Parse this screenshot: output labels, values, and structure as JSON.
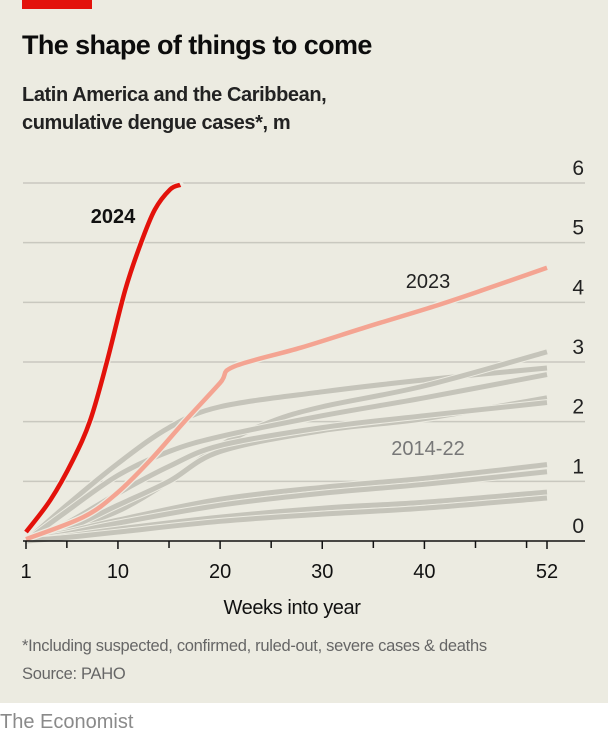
{
  "header": {
    "title": "The shape of things to come",
    "subtitle_line1": "Latin America and the Caribbean,",
    "subtitle_line2": "cumulative dengue cases*, m"
  },
  "footer": {
    "note": "*Including suspected, confirmed, ruled-out, severe cases & deaths",
    "source": "Source: PAHO",
    "brand": "The Economist"
  },
  "colors": {
    "background": "#ecebe1",
    "y2024": "#e3120b",
    "y2023": "#f4a492",
    "history": "#c5c4ba",
    "brand_bar": "#e3120b"
  },
  "chart_data": {
    "type": "line",
    "title": "The shape of things to come",
    "xlabel": "Weeks into year",
    "ylabel": "cumulative dengue cases*, m",
    "xlim": [
      1,
      52
    ],
    "ylim": [
      0,
      6
    ],
    "x_ticks": [
      1,
      10,
      20,
      30,
      40,
      52
    ],
    "x_minor_ticks": [
      5,
      15,
      25,
      35,
      45,
      50
    ],
    "y_ticks": [
      0,
      1,
      2,
      3,
      4,
      5,
      6
    ],
    "grid": true,
    "labels": {
      "y2024": "2024",
      "y2023": "2023",
      "history": "2014-22"
    },
    "series": [
      {
        "name": "2014-22 a",
        "group": "history",
        "x": [
          1,
          5,
          10,
          15,
          20,
          30,
          40,
          52
        ],
        "values": [
          0,
          0.6,
          1.3,
          1.9,
          2.25,
          2.5,
          2.7,
          2.9
        ]
      },
      {
        "name": "2014-22 b",
        "group": "history",
        "x": [
          1,
          5,
          10,
          15,
          20,
          25,
          30,
          40,
          52
        ],
        "values": [
          0,
          0.2,
          0.5,
          1.0,
          1.6,
          2.0,
          2.25,
          2.6,
          3.17
        ]
      },
      {
        "name": "2014-22 c",
        "group": "history",
        "x": [
          1,
          5,
          10,
          15,
          20,
          30,
          40,
          52
        ],
        "values": [
          0,
          0.5,
          1.1,
          1.5,
          1.75,
          2.1,
          2.4,
          2.79
        ]
      },
      {
        "name": "2014-22 d",
        "group": "history",
        "x": [
          1,
          5,
          10,
          15,
          20,
          30,
          40,
          52
        ],
        "values": [
          0,
          0.2,
          0.6,
          1.0,
          1.5,
          1.85,
          2.05,
          2.4
        ]
      },
      {
        "name": "2014-22 e",
        "group": "history",
        "x": [
          1,
          5,
          10,
          15,
          20,
          30,
          40,
          52
        ],
        "values": [
          0,
          0.3,
          0.8,
          1.25,
          1.6,
          1.9,
          2.1,
          2.32
        ]
      },
      {
        "name": "2014-22 f",
        "group": "history",
        "x": [
          1,
          5,
          10,
          20,
          30,
          40,
          52
        ],
        "values": [
          0,
          0.15,
          0.35,
          0.7,
          0.9,
          1.05,
          1.28
        ]
      },
      {
        "name": "2014-22 g",
        "group": "history",
        "x": [
          1,
          5,
          10,
          20,
          30,
          40,
          52
        ],
        "values": [
          0,
          0.12,
          0.3,
          0.6,
          0.8,
          0.95,
          1.16
        ]
      },
      {
        "name": "2014-22 h",
        "group": "history",
        "x": [
          1,
          5,
          10,
          20,
          30,
          40,
          52
        ],
        "values": [
          0,
          0.08,
          0.2,
          0.4,
          0.55,
          0.65,
          0.82
        ]
      },
      {
        "name": "2014-22 i",
        "group": "history",
        "x": [
          1,
          5,
          10,
          20,
          30,
          40,
          52
        ],
        "values": [
          0,
          0.06,
          0.15,
          0.33,
          0.45,
          0.55,
          0.72
        ]
      },
      {
        "name": "2023",
        "group": "y2023",
        "x": [
          1,
          6.6,
          9.9,
          13.2,
          16.4,
          20,
          21.3,
          27.9,
          34.4,
          40.9,
          45.8,
          52
        ],
        "values": [
          0.03,
          0.4,
          0.8,
          1.36,
          1.98,
          2.65,
          2.92,
          3.24,
          3.59,
          3.93,
          4.21,
          4.58
        ]
      },
      {
        "name": "2024",
        "group": "y2024",
        "x": [
          1,
          3.4,
          5.6,
          7.3,
          8.9,
          10.7,
          12.2,
          13.6,
          15.1,
          16.1
        ],
        "values": [
          0.15,
          0.69,
          1.36,
          2.03,
          2.99,
          4.2,
          4.97,
          5.55,
          5.89,
          5.97
        ]
      }
    ]
  }
}
